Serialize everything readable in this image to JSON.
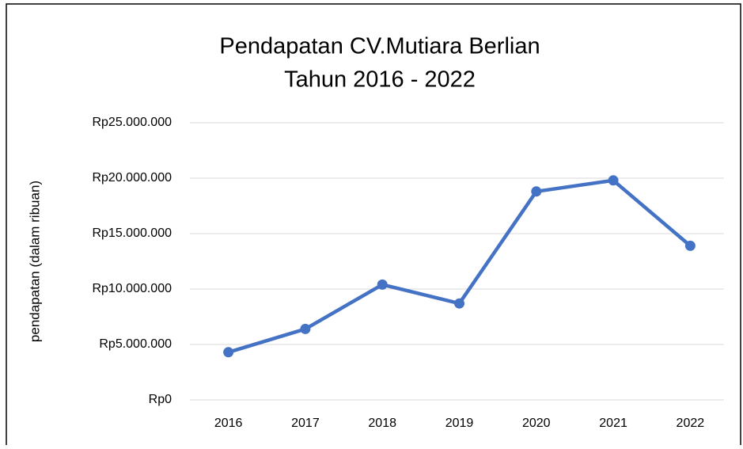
{
  "chart_data": {
    "type": "line",
    "title": [
      "Pendapatan CV.Mutiara Berlian",
      "Tahun 2016 - 2022"
    ],
    "y_label": "pendapatan (dalam ribuan)",
    "categories": [
      "2016",
      "2017",
      "2018",
      "2019",
      "2020",
      "2021",
      "2022"
    ],
    "series": [
      {
        "name": "Pendapatan",
        "color": "#4472c4",
        "values": [
          4300000,
          6400000,
          10400000,
          8700000,
          18800000,
          19800000,
          13900000
        ]
      }
    ],
    "ylim": [
      0,
      25000000
    ],
    "yticks": [
      {
        "value": 0,
        "label": "Rp0"
      },
      {
        "value": 5000000,
        "label": "Rp5.000.000"
      },
      {
        "value": 10000000,
        "label": "Rp10.000.000"
      },
      {
        "value": 15000000,
        "label": "Rp15.000.000"
      },
      {
        "value": 20000000,
        "label": "Rp20.000.000"
      },
      {
        "value": 25000000,
        "label": "Rp25.000.000"
      }
    ],
    "grid": true
  }
}
